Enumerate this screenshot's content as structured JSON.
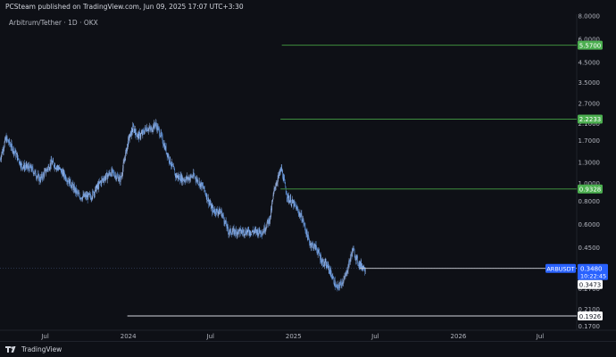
{
  "header": {
    "published_text": "PCSteam published on TradingView.com, Jun 09, 2025 17:07 UTC+3:30"
  },
  "footer": {
    "brand": "TradingView"
  },
  "colors": {
    "background": "#0e1016",
    "candle": "#5b8fd6",
    "green_line": "#3e8e3e",
    "green_label": "#4caf50",
    "white_line": "#d1d4dc",
    "price_label": "#2962ff"
  },
  "chart_data": {
    "type": "candlestick",
    "title": "Arbitrum/Tether · 1D · OKX",
    "y_scale": "log",
    "ylim": [
      0.165,
      8.0
    ],
    "x_range": [
      "2023-03-23",
      "2026-09-20"
    ],
    "y_ticks": [
      "8.0000",
      "6.0000",
      "4.5000",
      "3.5000",
      "2.7000",
      "2.1000",
      "1.7000",
      "1.3000",
      "1.0000",
      "0.8000",
      "0.6000",
      "0.4500",
      "0.3500",
      "0.2700",
      "0.2100",
      "0.1700"
    ],
    "x_ticks": [
      {
        "label": "Jul",
        "date": "2023-07-01"
      },
      {
        "label": "2024",
        "date": "2024-01-01"
      },
      {
        "label": "Jul",
        "date": "2024-07-01"
      },
      {
        "label": "2025",
        "date": "2025-01-01"
      },
      {
        "label": "Jul",
        "date": "2025-07-01"
      },
      {
        "label": "2026",
        "date": "2026-01-01"
      },
      {
        "label": "Jul",
        "date": "2026-07-01"
      }
    ],
    "horizontal_lines": [
      {
        "price": 5.57,
        "label": "5.5700",
        "color": "#3e8e3e",
        "start": "2024-12-06"
      },
      {
        "price": 2.2233,
        "label": "2.2233",
        "color": "#3e8e3e",
        "start": "2024-12-03"
      },
      {
        "price": 0.9328,
        "label": "0.9328",
        "color": "#3e8e3e",
        "start": "2024-12-03"
      },
      {
        "price": 0.1926,
        "label": "0.1926",
        "color": "#d1d4dc",
        "start": "2023-12-30"
      }
    ],
    "current": {
      "symbol": "ARBUSDT",
      "price_label": "0.3480",
      "countdown": "10:22:45",
      "price": 0.348,
      "secondary_price_label": "0.3473",
      "secondary_price": 0.3473
    },
    "price_path": [
      {
        "date": "2023-03-23",
        "close": 1.35
      },
      {
        "date": "2023-04-05",
        "close": 1.75
      },
      {
        "date": "2023-04-20",
        "close": 1.55
      },
      {
        "date": "2023-05-10",
        "close": 1.25
      },
      {
        "date": "2023-06-01",
        "close": 1.2
      },
      {
        "date": "2023-06-20",
        "close": 1.05
      },
      {
        "date": "2023-07-15",
        "close": 1.3
      },
      {
        "date": "2023-08-01",
        "close": 1.2
      },
      {
        "date": "2023-08-20",
        "close": 1.05
      },
      {
        "date": "2023-09-15",
        "close": 0.85
      },
      {
        "date": "2023-10-10",
        "close": 0.85
      },
      {
        "date": "2023-11-05",
        "close": 1.05
      },
      {
        "date": "2023-11-25",
        "close": 1.15
      },
      {
        "date": "2023-12-15",
        "close": 1.05
      },
      {
        "date": "2024-01-01",
        "close": 1.7
      },
      {
        "date": "2024-01-12",
        "close": 2.0
      },
      {
        "date": "2024-01-22",
        "close": 1.8
      },
      {
        "date": "2024-02-01",
        "close": 1.85
      },
      {
        "date": "2024-02-10",
        "close": 2.0
      },
      {
        "date": "2024-02-20",
        "close": 1.95
      },
      {
        "date": "2024-03-01",
        "close": 2.1
      },
      {
        "date": "2024-03-12",
        "close": 1.85
      },
      {
        "date": "2024-03-25",
        "close": 1.5
      },
      {
        "date": "2024-04-15",
        "close": 1.1
      },
      {
        "date": "2024-05-05",
        "close": 1.05
      },
      {
        "date": "2024-05-25",
        "close": 1.1
      },
      {
        "date": "2024-06-15",
        "close": 0.95
      },
      {
        "date": "2024-07-05",
        "close": 0.72
      },
      {
        "date": "2024-07-25",
        "close": 0.7
      },
      {
        "date": "2024-08-10",
        "close": 0.55
      },
      {
        "date": "2024-08-25",
        "close": 0.55
      },
      {
        "date": "2024-09-15",
        "close": 0.55
      },
      {
        "date": "2024-10-05",
        "close": 0.55
      },
      {
        "date": "2024-10-25",
        "close": 0.55
      },
      {
        "date": "2024-11-10",
        "close": 0.65
      },
      {
        "date": "2024-11-20",
        "close": 0.95
      },
      {
        "date": "2024-12-05",
        "close": 1.2
      },
      {
        "date": "2024-12-18",
        "close": 0.85
      },
      {
        "date": "2025-01-05",
        "close": 0.75
      },
      {
        "date": "2025-01-20",
        "close": 0.65
      },
      {
        "date": "2025-02-05",
        "close": 0.48
      },
      {
        "date": "2025-02-20",
        "close": 0.45
      },
      {
        "date": "2025-03-05",
        "close": 0.38
      },
      {
        "date": "2025-03-20",
        "close": 0.35
      },
      {
        "date": "2025-04-07",
        "close": 0.27
      },
      {
        "date": "2025-04-25",
        "close": 0.31
      },
      {
        "date": "2025-05-12",
        "close": 0.44
      },
      {
        "date": "2025-05-25",
        "close": 0.37
      },
      {
        "date": "2025-06-09",
        "close": 0.348
      }
    ]
  }
}
